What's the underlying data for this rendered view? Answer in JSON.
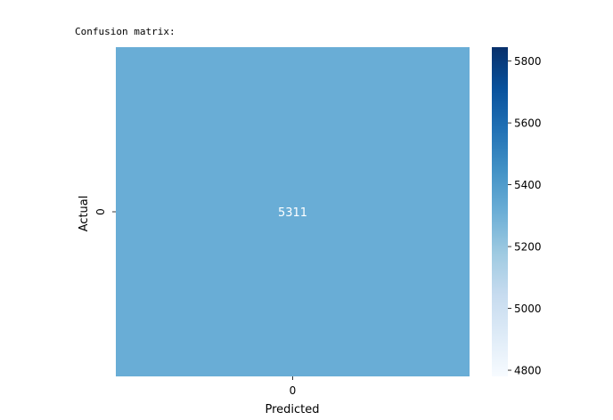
{
  "caption": "Confusion matrix:",
  "chart_data": {
    "type": "heatmap",
    "title": "",
    "xlabel": "Predicted",
    "ylabel": "Actual",
    "x_categories": [
      "0"
    ],
    "y_categories": [
      "0"
    ],
    "values": [
      [
        5311
      ]
    ],
    "annotations": true,
    "colormap": "Blues",
    "cell_color": "#69add6",
    "annotation_color": "#ffffff",
    "colorbar": {
      "range": [
        4780,
        5845
      ],
      "ticks": [
        4800,
        5000,
        5200,
        5400,
        5600,
        5800
      ],
      "colors": [
        "#f7fbff",
        "#deebf7",
        "#c6dbef",
        "#9ecae1",
        "#6baed6",
        "#4292c6",
        "#2171b5",
        "#08519c",
        "#08306b"
      ]
    }
  }
}
